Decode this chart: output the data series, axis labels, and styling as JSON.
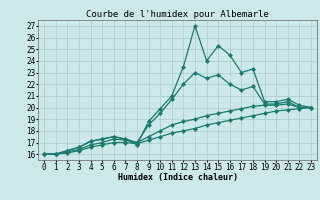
{
  "title": "Courbe de l'humidex pour Albemarle",
  "xlabel": "Humidex (Indice chaleur)",
  "bg_color": "#cce8e8",
  "grid_color": "#aacccc",
  "line_color": "#1a7a6e",
  "xlim": [
    -0.5,
    23.5
  ],
  "ylim": [
    15.5,
    27.5
  ],
  "xticks": [
    0,
    1,
    2,
    3,
    4,
    5,
    6,
    7,
    8,
    9,
    10,
    11,
    12,
    13,
    14,
    15,
    16,
    17,
    18,
    19,
    20,
    21,
    22,
    23
  ],
  "yticks": [
    16,
    17,
    18,
    19,
    20,
    21,
    22,
    23,
    24,
    25,
    26,
    27
  ],
  "lines": [
    {
      "x": [
        0,
        1,
        2,
        3,
        4,
        5,
        6,
        7,
        8,
        9,
        10,
        11,
        12,
        13,
        14,
        15,
        16,
        17,
        18,
        19,
        20,
        21,
        22,
        23
      ],
      "y": [
        16,
        16,
        16.3,
        16.6,
        17.1,
        17.3,
        17.5,
        17.3,
        16.8,
        18.8,
        19.9,
        21.0,
        23.5,
        27.0,
        24.0,
        25.3,
        24.5,
        23.0,
        23.3,
        20.5,
        20.5,
        20.7,
        20.2,
        20.0
      ]
    },
    {
      "x": [
        0,
        1,
        2,
        3,
        4,
        5,
        6,
        7,
        8,
        9,
        10,
        11,
        12,
        13,
        14,
        15,
        16,
        17,
        18,
        19,
        20,
        21,
        22,
        23
      ],
      "y": [
        16,
        16,
        16.3,
        16.6,
        17.1,
        17.3,
        17.5,
        17.3,
        17.0,
        18.5,
        19.5,
        20.7,
        22.0,
        23.0,
        22.5,
        22.8,
        22.0,
        21.5,
        21.8,
        20.3,
        20.3,
        20.5,
        20.0,
        20.0
      ]
    },
    {
      "x": [
        0,
        1,
        2,
        3,
        4,
        5,
        6,
        7,
        8,
        9,
        10,
        11,
        12,
        13,
        14,
        15,
        16,
        17,
        18,
        19,
        20,
        21,
        22,
        23
      ],
      "y": [
        16,
        16,
        16.2,
        16.4,
        16.8,
        17.0,
        17.3,
        17.2,
        17.0,
        17.5,
        18.0,
        18.5,
        18.8,
        19.0,
        19.3,
        19.5,
        19.7,
        19.9,
        20.1,
        20.2,
        20.2,
        20.3,
        20.0,
        20.0
      ]
    },
    {
      "x": [
        0,
        1,
        2,
        3,
        4,
        5,
        6,
        7,
        8,
        9,
        10,
        11,
        12,
        13,
        14,
        15,
        16,
        17,
        18,
        19,
        20,
        21,
        22,
        23
      ],
      "y": [
        16,
        16,
        16.1,
        16.3,
        16.6,
        16.8,
        17.0,
        17.0,
        16.9,
        17.2,
        17.5,
        17.8,
        18.0,
        18.2,
        18.5,
        18.7,
        18.9,
        19.1,
        19.3,
        19.5,
        19.7,
        19.8,
        19.9,
        20.0
      ]
    }
  ],
  "marker": "D",
  "markersize": 2.0,
  "linewidth": 0.9,
  "title_fontsize": 6.5,
  "axis_fontsize": 6,
  "tick_fontsize": 5.5
}
